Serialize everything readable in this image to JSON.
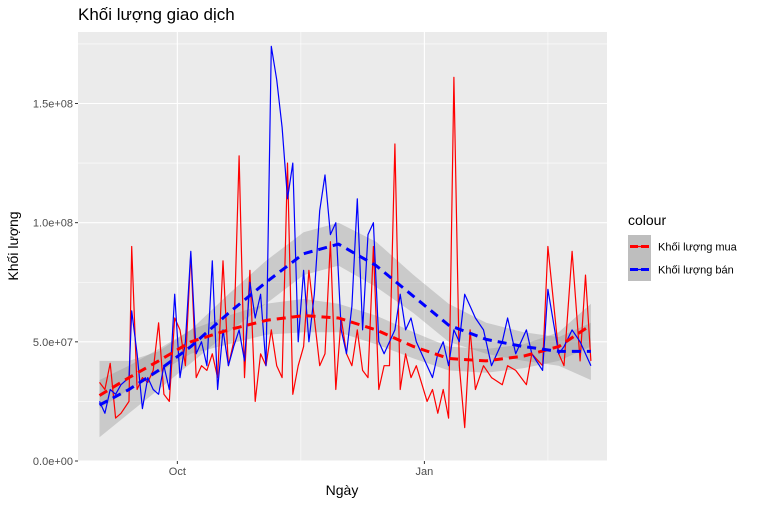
{
  "chart_data": {
    "type": "line",
    "title": "Khối lượng giao dịch",
    "xlabel": "Ngày",
    "ylabel": "Khối lượng",
    "x_ticks": [
      {
        "date": "2021-10-01",
        "label": "Oct"
      },
      {
        "date": "2022-01-01",
        "label": "Jan"
      }
    ],
    "xlim": [
      "2021-08-25",
      "2022-03-10"
    ],
    "y_ticks": [
      {
        "value": 0,
        "label": "0.0e+00"
      },
      {
        "value": 50000000,
        "label": "5.0e+07"
      },
      {
        "value": 100000000,
        "label": "1.0e+08"
      },
      {
        "value": 150000000,
        "label": "1.5e+08"
      }
    ],
    "ylim": [
      0,
      180000000
    ],
    "grid": true,
    "legend": {
      "title": "colour",
      "position": "right",
      "entries": [
        {
          "label": "Khối lượng mua",
          "color": "#ff0000"
        },
        {
          "label": "Khối lượng bán",
          "color": "#0000ff"
        }
      ]
    },
    "series": [
      {
        "name": "Khối lượng mua",
        "color": "#ff0000",
        "x": [
          "2021-09-02",
          "2021-09-04",
          "2021-09-06",
          "2021-09-08",
          "2021-09-10",
          "2021-09-13",
          "2021-09-14",
          "2021-09-16",
          "2021-09-18",
          "2021-09-20",
          "2021-09-22",
          "2021-09-24",
          "2021-09-26",
          "2021-09-28",
          "2021-09-30",
          "2021-10-02",
          "2021-10-04",
          "2021-10-06",
          "2021-10-08",
          "2021-10-10",
          "2021-10-12",
          "2021-10-14",
          "2021-10-16",
          "2021-10-18",
          "2021-10-20",
          "2021-10-22",
          "2021-10-24",
          "2021-10-26",
          "2021-10-28",
          "2021-10-30",
          "2021-11-01",
          "2021-11-03",
          "2021-11-05",
          "2021-11-07",
          "2021-11-09",
          "2021-11-11",
          "2021-11-13",
          "2021-11-15",
          "2021-11-17",
          "2021-11-19",
          "2021-11-21",
          "2021-11-23",
          "2021-11-25",
          "2021-11-27",
          "2021-11-29",
          "2021-12-01",
          "2021-12-03",
          "2021-12-05",
          "2021-12-07",
          "2021-12-09",
          "2021-12-11",
          "2021-12-13",
          "2021-12-15",
          "2021-12-17",
          "2021-12-19",
          "2021-12-21",
          "2021-12-23",
          "2021-12-25",
          "2021-12-27",
          "2021-12-29",
          "2022-01-02",
          "2022-01-04",
          "2022-01-06",
          "2022-01-08",
          "2022-01-10",
          "2022-01-12",
          "2022-01-14",
          "2022-01-16",
          "2022-01-18",
          "2022-01-20",
          "2022-01-23",
          "2022-01-26",
          "2022-01-30",
          "2022-02-01",
          "2022-02-04",
          "2022-02-08",
          "2022-02-10",
          "2022-02-14",
          "2022-02-16",
          "2022-02-20",
          "2022-02-22",
          "2022-02-25",
          "2022-02-28",
          "2022-03-02",
          "2022-03-04"
        ],
        "values": [
          33000000,
          30000000,
          41000000,
          18000000,
          20000000,
          25000000,
          90000000,
          30000000,
          35000000,
          33000000,
          38000000,
          58000000,
          28000000,
          25000000,
          60000000,
          55000000,
          40000000,
          87000000,
          35000000,
          40000000,
          38000000,
          45000000,
          35000000,
          84000000,
          40000000,
          50000000,
          128000000,
          35000000,
          80000000,
          25000000,
          45000000,
          40000000,
          55000000,
          40000000,
          35000000,
          125000000,
          28000000,
          40000000,
          48000000,
          80000000,
          60000000,
          40000000,
          45000000,
          92000000,
          30000000,
          60000000,
          45000000,
          40000000,
          55000000,
          38000000,
          35000000,
          90000000,
          30000000,
          40000000,
          40000000,
          133000000,
          30000000,
          45000000,
          35000000,
          40000000,
          25000000,
          30000000,
          20000000,
          30000000,
          18000000,
          161000000,
          40000000,
          14000000,
          55000000,
          30000000,
          40000000,
          35000000,
          32000000,
          40000000,
          38000000,
          32000000,
          45000000,
          40000000,
          90000000,
          45000000,
          40000000,
          88000000,
          42000000,
          78000000,
          42000000
        ]
      },
      {
        "name": "Khối lượng bán",
        "color": "#0000ff",
        "x": [
          "2021-09-02",
          "2021-09-04",
          "2021-09-06",
          "2021-09-08",
          "2021-09-10",
          "2021-09-13",
          "2021-09-14",
          "2021-09-16",
          "2021-09-18",
          "2021-09-20",
          "2021-09-22",
          "2021-09-24",
          "2021-09-26",
          "2021-09-28",
          "2021-09-30",
          "2021-10-02",
          "2021-10-04",
          "2021-10-06",
          "2021-10-08",
          "2021-10-10",
          "2021-10-12",
          "2021-10-14",
          "2021-10-16",
          "2021-10-18",
          "2021-10-20",
          "2021-10-22",
          "2021-10-24",
          "2021-10-26",
          "2021-10-28",
          "2021-10-30",
          "2021-11-01",
          "2021-11-03",
          "2021-11-05",
          "2021-11-07",
          "2021-11-09",
          "2021-11-11",
          "2021-11-13",
          "2021-11-15",
          "2021-11-17",
          "2021-11-19",
          "2021-11-21",
          "2021-11-23",
          "2021-11-25",
          "2021-11-27",
          "2021-11-29",
          "2021-12-01",
          "2021-12-03",
          "2021-12-05",
          "2021-12-07",
          "2021-12-09",
          "2021-12-11",
          "2021-12-13",
          "2021-12-15",
          "2021-12-17",
          "2021-12-19",
          "2021-12-21",
          "2021-12-23",
          "2021-12-25",
          "2021-12-27",
          "2021-12-29",
          "2022-01-02",
          "2022-01-04",
          "2022-01-06",
          "2022-01-08",
          "2022-01-10",
          "2022-01-12",
          "2022-01-14",
          "2022-01-16",
          "2022-01-18",
          "2022-01-20",
          "2022-01-23",
          "2022-01-26",
          "2022-01-30",
          "2022-02-01",
          "2022-02-04",
          "2022-02-08",
          "2022-02-10",
          "2022-02-14",
          "2022-02-16",
          "2022-02-20",
          "2022-02-22",
          "2022-02-25",
          "2022-02-28",
          "2022-03-02",
          "2022-03-04"
        ],
        "values": [
          25000000,
          20000000,
          30000000,
          28000000,
          32000000,
          35000000,
          63000000,
          45000000,
          22000000,
          35000000,
          30000000,
          28000000,
          40000000,
          30000000,
          70000000,
          35000000,
          50000000,
          88000000,
          45000000,
          50000000,
          40000000,
          84000000,
          30000000,
          55000000,
          40000000,
          48000000,
          55000000,
          42000000,
          75000000,
          60000000,
          70000000,
          40000000,
          174000000,
          160000000,
          140000000,
          110000000,
          125000000,
          50000000,
          80000000,
          50000000,
          70000000,
          105000000,
          120000000,
          95000000,
          100000000,
          55000000,
          45000000,
          65000000,
          110000000,
          55000000,
          95000000,
          100000000,
          50000000,
          45000000,
          50000000,
          55000000,
          70000000,
          55000000,
          60000000,
          50000000,
          40000000,
          35000000,
          45000000,
          50000000,
          40000000,
          55000000,
          50000000,
          70000000,
          65000000,
          60000000,
          55000000,
          40000000,
          50000000,
          60000000,
          45000000,
          55000000,
          45000000,
          38000000,
          72000000,
          45000000,
          48000000,
          55000000,
          50000000,
          45000000,
          40000000
        ]
      },
      {
        "name": "Khối lượng mua",
        "kind": "smooth",
        "color": "#ff0000",
        "x": [
          "2021-09-02",
          "2021-09-13",
          "2021-09-24",
          "2021-10-06",
          "2021-10-20",
          "2021-11-03",
          "2021-11-17",
          "2021-11-30",
          "2021-12-14",
          "2021-12-28",
          "2022-01-10",
          "2022-01-24",
          "2022-02-07",
          "2022-02-20",
          "2022-03-04"
        ],
        "values": [
          27500000,
          35000000,
          42000000,
          50000000,
          55000000,
          59000000,
          61000000,
          60000000,
          55000000,
          48000000,
          43000000,
          42000000,
          44000000,
          48000000,
          57000000
        ],
        "band_low": [
          22000000,
          30000000,
          37000000,
          45000000,
          49000000,
          53000000,
          54000000,
          54000000,
          49000000,
          43000000,
          38000000,
          37000000,
          39000000,
          42000000,
          48000000
        ],
        "band_high": [
          34000000,
          40000000,
          47000000,
          55000000,
          61000000,
          66000000,
          68000000,
          66000000,
          61000000,
          54000000,
          48000000,
          47000000,
          49000000,
          54000000,
          66000000
        ]
      },
      {
        "name": "Khối lượng bán",
        "kind": "smooth",
        "color": "#0000ff",
        "x": [
          "2021-09-02",
          "2021-09-13",
          "2021-09-24",
          "2021-10-06",
          "2021-10-20",
          "2021-11-03",
          "2021-11-17",
          "2021-11-30",
          "2021-12-14",
          "2021-12-28",
          "2022-01-10",
          "2022-01-24",
          "2022-02-07",
          "2022-02-20",
          "2022-03-04"
        ],
        "values": [
          23500000,
          30000000,
          38000000,
          48000000,
          62000000,
          75000000,
          87000000,
          91000000,
          82000000,
          69000000,
          57000000,
          51000000,
          48000000,
          46000000,
          46000000
        ],
        "band_low": [
          10000000,
          20000000,
          30000000,
          41000000,
          54000000,
          66000000,
          78000000,
          82000000,
          73000000,
          62000000,
          50000000,
          45000000,
          42000000,
          40000000,
          34000000
        ],
        "band_high": [
          42000000,
          42000000,
          46000000,
          55000000,
          70000000,
          84000000,
          96000000,
          100000000,
          92000000,
          78000000,
          66000000,
          58000000,
          54000000,
          52000000,
          58000000
        ]
      }
    ]
  }
}
